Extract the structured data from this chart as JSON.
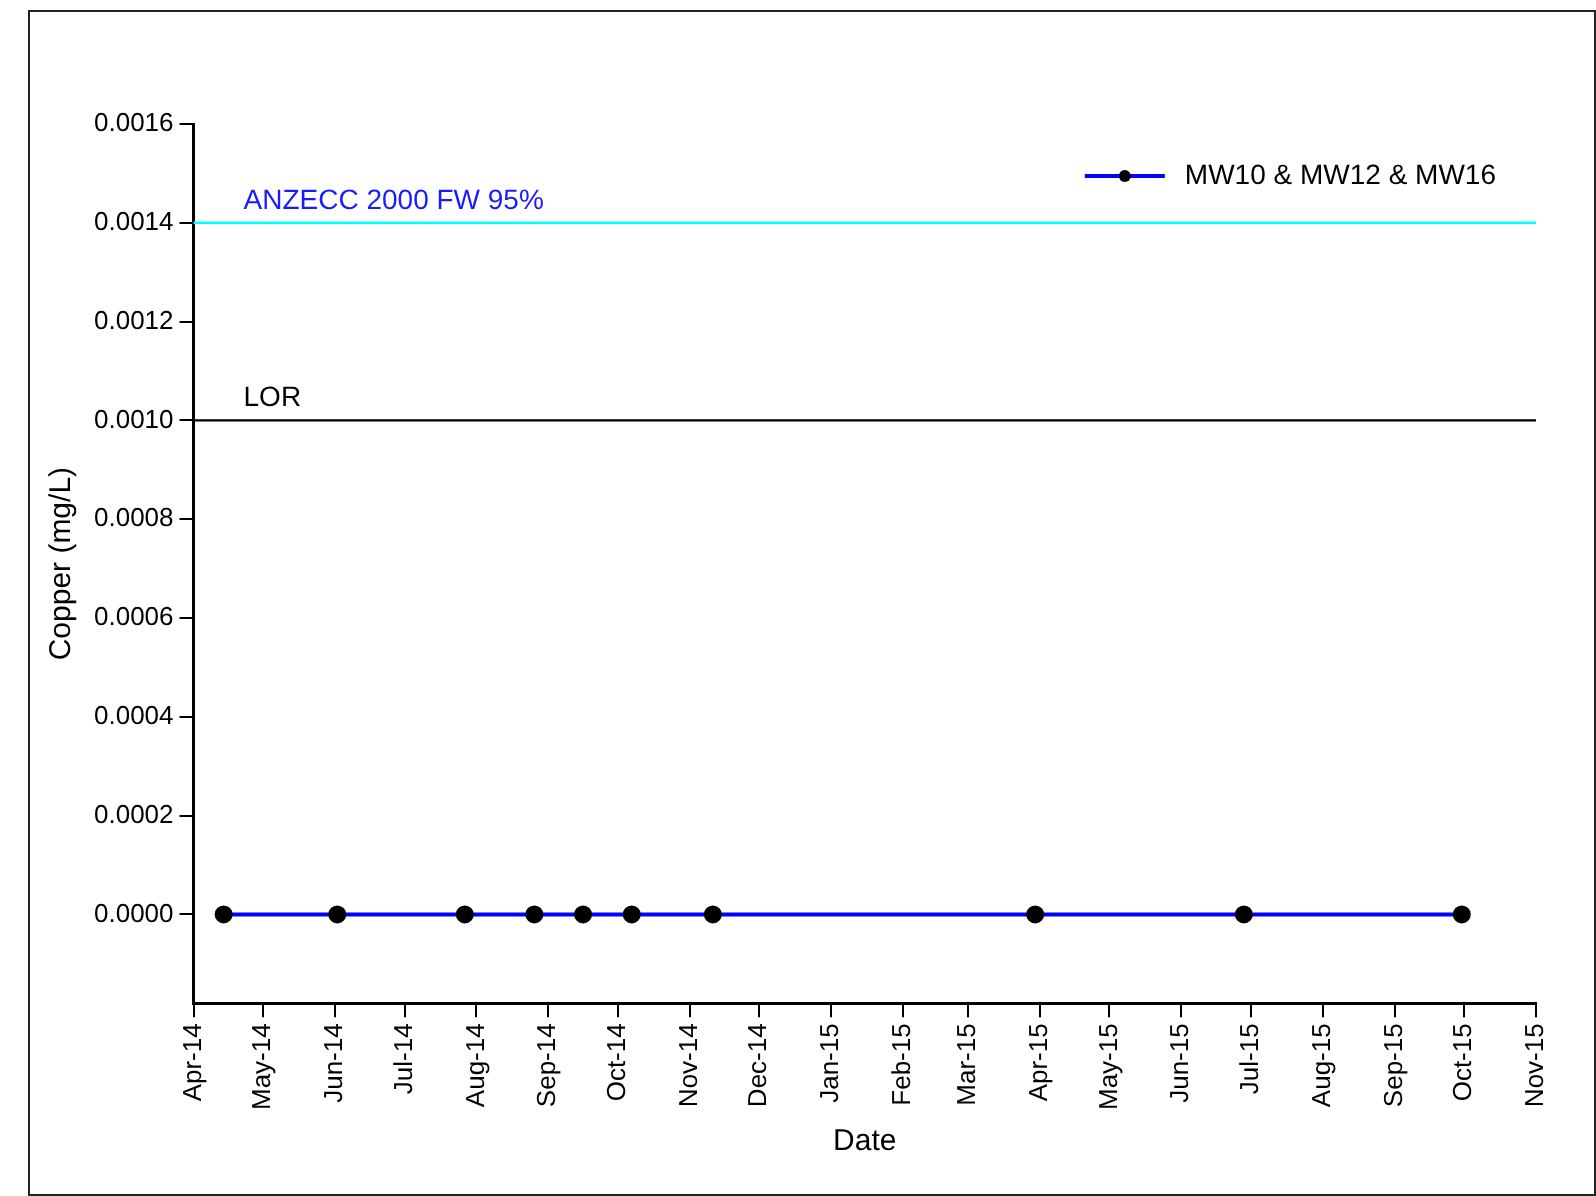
{
  "chart_data": {
    "type": "line",
    "xlabel": "Date",
    "ylabel": "Copper (mg/L)",
    "x": [
      "2014-04-14",
      "2014-06-02",
      "2014-07-27",
      "2014-08-26",
      "2014-09-16",
      "2014-10-07",
      "2014-11-11",
      "2015-03-30",
      "2015-06-28",
      "2015-09-30"
    ],
    "series": [
      {
        "name": "MW10 & MW12 & MW16",
        "color": "#0000ff",
        "values": [
          0,
          0,
          0,
          0,
          0,
          0,
          0,
          0,
          0,
          0
        ]
      }
    ],
    "xlim": [
      "2014-04-01",
      "2015-11-01"
    ],
    "xticks": [
      {
        "value": "2014-04-01",
        "label": "Apr-14"
      },
      {
        "value": "2014-05-01",
        "label": "May-14"
      },
      {
        "value": "2014-06-01",
        "label": "Jun-14"
      },
      {
        "value": "2014-07-01",
        "label": "Jul-14"
      },
      {
        "value": "2014-08-01",
        "label": "Aug-14"
      },
      {
        "value": "2014-09-01",
        "label": "Sep-14"
      },
      {
        "value": "2014-10-01",
        "label": "Oct-14"
      },
      {
        "value": "2014-11-01",
        "label": "Nov-14"
      },
      {
        "value": "2014-12-01",
        "label": "Dec-14"
      },
      {
        "value": "2015-01-01",
        "label": "Jan-15"
      },
      {
        "value": "2015-02-01",
        "label": "Feb-15"
      },
      {
        "value": "2015-03-01",
        "label": "Mar-15"
      },
      {
        "value": "2015-04-01",
        "label": "Apr-15"
      },
      {
        "value": "2015-05-01",
        "label": "May-15"
      },
      {
        "value": "2015-06-01",
        "label": "Jun-15"
      },
      {
        "value": "2015-07-01",
        "label": "Jul-15"
      },
      {
        "value": "2015-08-01",
        "label": "Aug-15"
      },
      {
        "value": "2015-09-01",
        "label": "Sep-15"
      },
      {
        "value": "2015-10-01",
        "label": "Oct-15"
      },
      {
        "value": "2015-11-01",
        "label": "Nov-15"
      }
    ],
    "ylim": [
      -0.00018,
      0.0016
    ],
    "yticks": [
      {
        "value": 0,
        "label": "0.0000"
      },
      {
        "value": 0.0002,
        "label": "0.0002"
      },
      {
        "value": 0.0004,
        "label": "0.0004"
      },
      {
        "value": 0.0006,
        "label": "0.0006"
      },
      {
        "value": 0.0008,
        "label": "0.0008"
      },
      {
        "value": 0.001,
        "label": "0.0010"
      },
      {
        "value": 0.0012,
        "label": "0.0012"
      },
      {
        "value": 0.0014,
        "label": "0.0014"
      },
      {
        "value": 0.0016,
        "label": "0.0016"
      }
    ],
    "ref_lines": [
      {
        "axis": "y",
        "value": 0.0014,
        "label": "ANZECC 2000 FW 95%",
        "color": "#00ffff"
      },
      {
        "axis": "y",
        "value": 0.001,
        "label": "LOR",
        "color": "#000000"
      }
    ],
    "legend": "top right",
    "marker": "circle",
    "line_style": "solid",
    "grid": false
  }
}
